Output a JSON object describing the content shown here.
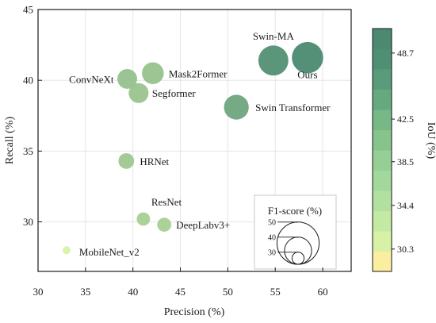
{
  "chart_data": {
    "type": "scatter",
    "xlabel": "Precision (%)",
    "ylabel": "Recall (%)",
    "xlim": [
      30,
      63
    ],
    "ylim": [
      26.5,
      45
    ],
    "xticks": [
      "30",
      "35",
      "40",
      "45",
      "50",
      "55",
      "60"
    ],
    "yticks": [
      "30",
      "35",
      "40",
      "45"
    ],
    "grid": true,
    "size_metric": "F1-score",
    "color_metric": "IoU",
    "points": [
      {
        "label": "Swin-MA",
        "precision": 54.8,
        "recall": 41.4,
        "f1": 47.6,
        "iou": 48.0
      },
      {
        "label": "Ours",
        "precision": 58.4,
        "recall": 41.6,
        "f1": 48.6,
        "iou": 48.9
      },
      {
        "label": "Mask2Former",
        "precision": 42.1,
        "recall": 40.5,
        "f1": 41.3,
        "iou": 40.3
      },
      {
        "label": "ConvNeXt",
        "precision": 39.4,
        "recall": 40.1,
        "f1": 39.7,
        "iou": 40.5
      },
      {
        "label": "Segformer",
        "precision": 40.6,
        "recall": 39.1,
        "f1": 39.8,
        "iou": 40.0
      },
      {
        "label": "Swin Transformer",
        "precision": 50.9,
        "recall": 38.1,
        "f1": 43.6,
        "iou": 44.8
      },
      {
        "label": "HRNet",
        "precision": 39.3,
        "recall": 34.3,
        "f1": 36.6,
        "iou": 39.4
      },
      {
        "label": "ResNet",
        "precision": 41.1,
        "recall": 30.2,
        "f1": 34.8,
        "iou": 38.2
      },
      {
        "label": "DeepLabv3+",
        "precision": 43.3,
        "recall": 29.8,
        "f1": 35.3,
        "iou": 38.3
      },
      {
        "label": "MobileNet_v2",
        "precision": 33.0,
        "recall": 28.0,
        "f1": 30.3,
        "iou": 33.0
      }
    ],
    "colorbar": {
      "title": "IoU (%)",
      "range": [
        28.2,
        51.0
      ],
      "ticks": [
        "30.3",
        "34.4",
        "38.5",
        "42.5",
        "48.7"
      ],
      "tick_values": [
        30.3,
        34.4,
        38.5,
        42.5,
        48.7
      ],
      "colors": [
        "#fbeea0",
        "#d7f2a6",
        "#c3e9a3",
        "#b2e0a1",
        "#a3d89d",
        "#95cf95",
        "#87c48c",
        "#76b886",
        "#66a97f",
        "#5a9c79",
        "#4f8f73",
        "#4b8a70"
      ]
    },
    "size_legend": {
      "title": "F1-score (%)",
      "values": [
        "50",
        "40",
        "30"
      ],
      "value_numbers": [
        50,
        40,
        30
      ]
    }
  },
  "colors": {
    "point_fill_low": "#d7f2a6",
    "point_fill_high": "#4b8a70",
    "grid": "#e6e6e6",
    "axis": "#1a1a1a"
  }
}
